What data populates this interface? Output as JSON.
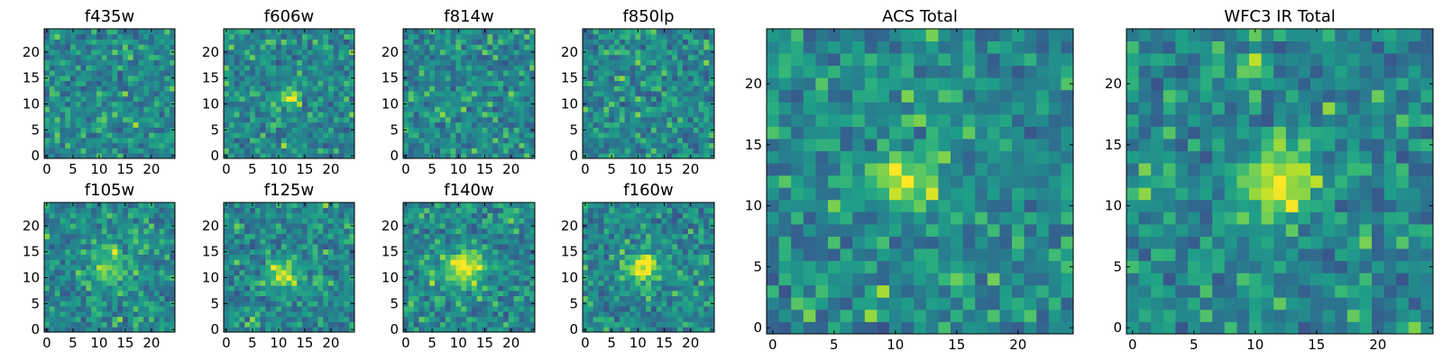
{
  "figure": {
    "colormap": "viridis",
    "panel_count": 10
  },
  "chart_data": [
    {
      "type": "heatmap",
      "title": "f435w",
      "grid": [
        25,
        25
      ],
      "xticks": [
        "0",
        "5",
        "10",
        "15",
        "20"
      ],
      "yticks": [
        "0",
        "5",
        "10",
        "15",
        "20"
      ],
      "xlim": [
        0,
        25
      ],
      "ylim": [
        0,
        25
      ],
      "seed": 11,
      "blobs": []
    },
    {
      "type": "heatmap",
      "title": "f606w",
      "grid": [
        25,
        25
      ],
      "xticks": [
        "0",
        "5",
        "10",
        "15",
        "20"
      ],
      "yticks": [
        "0",
        "5",
        "10",
        "15",
        "20"
      ],
      "xlim": [
        0,
        25
      ],
      "ylim": [
        0,
        25
      ],
      "seed": 23,
      "blobs": [
        [
          12,
          11,
          1.2,
          0.5
        ]
      ]
    },
    {
      "type": "heatmap",
      "title": "f814w",
      "grid": [
        25,
        25
      ],
      "xticks": [
        "0",
        "5",
        "10",
        "15",
        "20"
      ],
      "yticks": [
        "0",
        "5",
        "10",
        "15",
        "20"
      ],
      "xlim": [
        0,
        25
      ],
      "ylim": [
        0,
        25
      ],
      "seed": 37,
      "blobs": []
    },
    {
      "type": "heatmap",
      "title": "f850lp",
      "grid": [
        25,
        25
      ],
      "xticks": [
        "0",
        "5",
        "10",
        "15",
        "20"
      ],
      "yticks": [
        "0",
        "5",
        "10",
        "15",
        "20"
      ],
      "xlim": [
        0,
        25
      ],
      "ylim": [
        0,
        25
      ],
      "seed": 41,
      "blobs": []
    },
    {
      "type": "heatmap",
      "title": "f105w",
      "grid": [
        25,
        25
      ],
      "xticks": [
        "0",
        "5",
        "10",
        "15",
        "20"
      ],
      "yticks": [
        "0",
        "5",
        "10",
        "15",
        "20"
      ],
      "xlim": [
        0,
        25
      ],
      "ylim": [
        0,
        25
      ],
      "seed": 53,
      "blobs": [
        [
          12,
          12,
          2.5,
          0.35
        ]
      ]
    },
    {
      "type": "heatmap",
      "title": "f125w",
      "grid": [
        25,
        25
      ],
      "xticks": [
        "0",
        "5",
        "10",
        "15",
        "20"
      ],
      "yticks": [
        "0",
        "5",
        "10",
        "15",
        "20"
      ],
      "xlim": [
        0,
        25
      ],
      "ylim": [
        0,
        25
      ],
      "seed": 67,
      "blobs": [
        [
          11,
          11,
          2.0,
          0.45
        ]
      ]
    },
    {
      "type": "heatmap",
      "title": "f140w",
      "grid": [
        25,
        25
      ],
      "xticks": [
        "0",
        "5",
        "10",
        "15",
        "20"
      ],
      "yticks": [
        "0",
        "5",
        "10",
        "15",
        "20"
      ],
      "xlim": [
        0,
        25
      ],
      "ylim": [
        0,
        25
      ],
      "seed": 71,
      "blobs": [
        [
          11,
          12,
          2.5,
          0.5
        ]
      ]
    },
    {
      "type": "heatmap",
      "title": "f160w",
      "grid": [
        25,
        25
      ],
      "xticks": [
        "0",
        "5",
        "10",
        "15",
        "20"
      ],
      "yticks": [
        "0",
        "5",
        "10",
        "15",
        "20"
      ],
      "xlim": [
        0,
        25
      ],
      "ylim": [
        0,
        25
      ],
      "seed": 83,
      "blobs": [
        [
          11,
          12,
          2.0,
          0.55
        ]
      ]
    },
    {
      "type": "heatmap",
      "title": "ACS Total",
      "grid": [
        25,
        25
      ],
      "xticks": [
        "0",
        "5",
        "10",
        "15",
        "20"
      ],
      "yticks": [
        "0",
        "5",
        "10",
        "15",
        "20"
      ],
      "xlim": [
        0,
        25
      ],
      "ylim": [
        0,
        25
      ],
      "seed": 97,
      "blobs": [
        [
          11,
          12,
          1.5,
          0.55
        ]
      ]
    },
    {
      "type": "heatmap",
      "title": "WFC3 IR Total",
      "grid": [
        25,
        25
      ],
      "xticks": [
        "0",
        "5",
        "10",
        "15",
        "20"
      ],
      "yticks": [
        "0",
        "5",
        "10",
        "15",
        "20"
      ],
      "xlim": [
        0,
        25
      ],
      "ylim": [
        0,
        25
      ],
      "seed": 101,
      "blobs": [
        [
          12,
          12,
          2.0,
          0.55
        ],
        [
          10,
          21,
          0.8,
          0.45
        ]
      ]
    }
  ]
}
